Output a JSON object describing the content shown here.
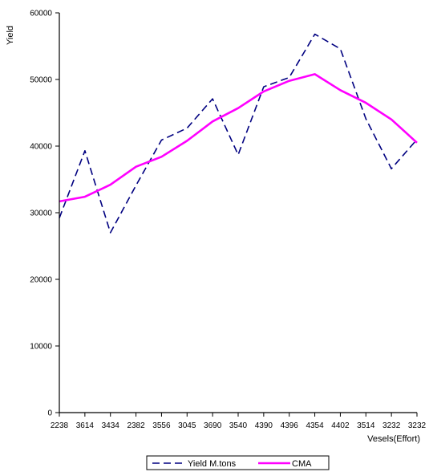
{
  "chart_data": {
    "type": "line",
    "title": "",
    "ylabel": "Yield",
    "xlabel": "Vesels(Effort)",
    "ylim": [
      0,
      60000
    ],
    "yticks": [
      0,
      10000,
      20000,
      30000,
      40000,
      50000,
      60000
    ],
    "categories": [
      "2238",
      "3614",
      "3434",
      "2382",
      "3556",
      "3045",
      "3690",
      "3540",
      "4390",
      "4396",
      "4354",
      "4402",
      "3514",
      "3232",
      "3232"
    ],
    "series": [
      {
        "name": "Yield M.tons",
        "style": "dashed",
        "color": "#000080",
        "values": [
          29200,
          39300,
          27000,
          34100,
          40900,
          42700,
          47100,
          38700,
          48900,
          50300,
          56800,
          54600,
          44100,
          36600,
          41000
        ]
      },
      {
        "name": "CMA",
        "style": "solid",
        "color": "#ff00ff",
        "values": [
          31700,
          32400,
          34200,
          36900,
          38400,
          40800,
          43700,
          45700,
          48200,
          49800,
          50800,
          48400,
          46500,
          44000,
          40500
        ]
      }
    ],
    "grid": false,
    "legend_position": "bottom-center"
  }
}
